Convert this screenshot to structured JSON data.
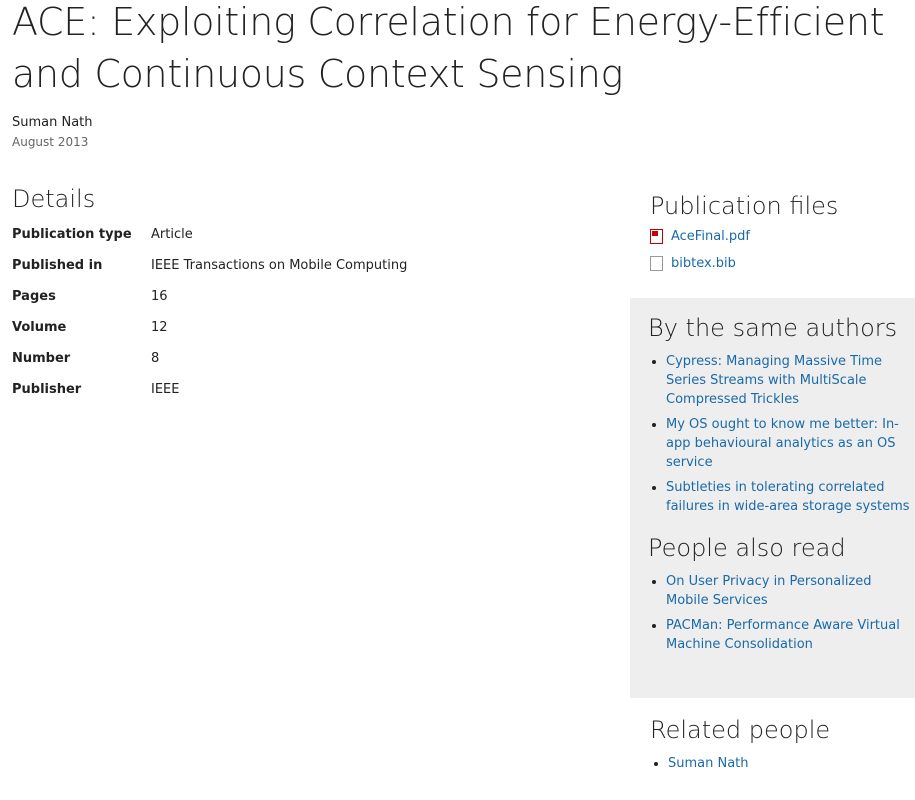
{
  "title": "ACE: Exploiting Correlation for Energy-Efficient and Continuous Context Sensing",
  "author": "Suman Nath",
  "date": "August 2013",
  "details": {
    "heading": "Details",
    "rows": [
      {
        "label": "Publication type",
        "value": "Article"
      },
      {
        "label": "Published in",
        "value": "IEEE Transactions on Mobile Computing"
      },
      {
        "label": "Pages",
        "value": "16"
      },
      {
        "label": "Volume",
        "value": "12"
      },
      {
        "label": "Number",
        "value": "8"
      },
      {
        "label": "Publisher",
        "value": "IEEE"
      }
    ]
  },
  "files": {
    "heading": "Publication files",
    "items": [
      {
        "name": "AceFinal.pdf",
        "icon": "pdf-icon"
      },
      {
        "name": "bibtex.bib",
        "icon": "file-icon"
      }
    ]
  },
  "same_authors": {
    "heading": "By the same authors",
    "items": [
      "Cypress: Managing Massive Time Series Streams with MultiScale Compressed Trickles",
      "My OS ought to know me better: In-app behavioural analytics as an OS service",
      "Subtleties in tolerating correlated failures in wide-area storage systems"
    ]
  },
  "also_read": {
    "heading": "People also read",
    "items": [
      "On User Privacy in Personalized Mobile Services",
      "PACMan: Performance Aware Virtual Machine Consolidation"
    ]
  },
  "related": {
    "heading": "Related people",
    "items": [
      "Suman Nath"
    ]
  },
  "colors": {
    "link": "#1a6aa8",
    "panel": "#eeeeee"
  }
}
